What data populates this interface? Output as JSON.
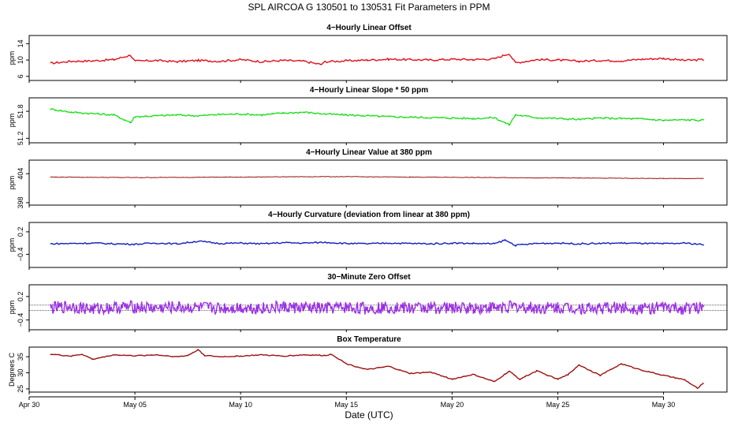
{
  "title": "SPL    AIRCOA G    130501 to 130531    Fit Parameters in PPM",
  "xlabel": "Date (UTC)",
  "chart_data": [
    {
      "type": "line",
      "title": "4−Hourly Linear Offset",
      "ylabel": "ppm",
      "yticks": [
        "6",
        "10",
        "14"
      ],
      "ylim": [
        5,
        16
      ],
      "color": "#e8101a",
      "series": [
        {
          "x": [
            1,
            31.9
          ],
          "baseline": 9.8,
          "values_note": ""
        }
      ],
      "points": [
        [
          1,
          9.2
        ],
        [
          2,
          9.7
        ],
        [
          3,
          9.8
        ],
        [
          4,
          10.1
        ],
        [
          4.8,
          11.2
        ],
        [
          5,
          9.7
        ],
        [
          6,
          9.9
        ],
        [
          7,
          9.6
        ],
        [
          8,
          9.9
        ],
        [
          9,
          9.7
        ],
        [
          10,
          10.1
        ],
        [
          11,
          9.6
        ],
        [
          12,
          9.9
        ],
        [
          13,
          9.7
        ],
        [
          13.8,
          8.9
        ],
        [
          14,
          9.6
        ],
        [
          15,
          9.8
        ],
        [
          16,
          10.0
        ],
        [
          17,
          10.2
        ],
        [
          18,
          10.1
        ],
        [
          19,
          10.0
        ],
        [
          20,
          10.2
        ],
        [
          21,
          10.1
        ],
        [
          22,
          10.3
        ],
        [
          22.7,
          11.6
        ],
        [
          23,
          9.3
        ],
        [
          24,
          10.1
        ],
        [
          25,
          10.0
        ],
        [
          26,
          9.7
        ],
        [
          27,
          9.9
        ],
        [
          28,
          9.8
        ],
        [
          29,
          10.2
        ],
        [
          30,
          10.4
        ],
        [
          31,
          9.9
        ],
        [
          31.9,
          10.1
        ]
      ]
    },
    {
      "type": "line",
      "title": "4−Hourly Linear Slope * 50 ppm",
      "ylabel": "ppm",
      "yticks": [
        "51.2",
        "51.8"
      ],
      "ylim": [
        51.1,
        52.1
      ],
      "color": "#1ee61e",
      "points": [
        [
          1,
          51.85
        ],
        [
          2,
          51.78
        ],
        [
          3,
          51.75
        ],
        [
          4,
          51.72
        ],
        [
          4.8,
          51.55
        ],
        [
          5,
          51.68
        ],
        [
          6,
          51.7
        ],
        [
          7,
          51.72
        ],
        [
          8,
          51.7
        ],
        [
          9,
          51.73
        ],
        [
          10,
          51.74
        ],
        [
          11,
          51.72
        ],
        [
          12,
          51.76
        ],
        [
          13,
          51.78
        ],
        [
          14,
          51.74
        ],
        [
          15,
          51.72
        ],
        [
          16,
          51.7
        ],
        [
          17,
          51.68
        ],
        [
          18,
          51.67
        ],
        [
          19,
          51.66
        ],
        [
          20,
          51.65
        ],
        [
          21,
          51.64
        ],
        [
          22,
          51.66
        ],
        [
          22.7,
          51.5
        ],
        [
          23,
          51.72
        ],
        [
          24,
          51.66
        ],
        [
          25,
          51.64
        ],
        [
          26,
          51.62
        ],
        [
          27,
          51.65
        ],
        [
          28,
          51.64
        ],
        [
          29,
          51.63
        ],
        [
          30,
          51.6
        ],
        [
          31,
          51.61
        ],
        [
          31.9,
          51.6
        ]
      ]
    },
    {
      "type": "line",
      "title": "4−Hourly Linear Value at 380 ppm",
      "ylabel": "ppm",
      "yticks": [
        "398",
        "404"
      ],
      "ylim": [
        397.5,
        406.8
      ],
      "color": "#a01010",
      "points": [
        [
          1,
          403.3
        ],
        [
          5,
          403.2
        ],
        [
          10,
          403.3
        ],
        [
          14,
          403.4
        ],
        [
          18,
          403.3
        ],
        [
          22,
          403.2
        ],
        [
          26,
          403.1
        ],
        [
          30,
          403.0
        ],
        [
          31.9,
          403.0
        ]
      ]
    },
    {
      "type": "line",
      "title": "4−Hourly Curvature (deviation from linear at 380 ppm)",
      "ylabel": "ppm",
      "yticks": [
        "−0.4",
        "0.2"
      ],
      "ylim": [
        -0.75,
        0.45
      ],
      "color": "#1020c8",
      "points": [
        [
          1,
          -0.12
        ],
        [
          2,
          -0.11
        ],
        [
          3,
          -0.1
        ],
        [
          4,
          -0.12
        ],
        [
          5,
          -0.13
        ],
        [
          6,
          -0.1
        ],
        [
          7,
          -0.12
        ],
        [
          8,
          -0.05
        ],
        [
          9,
          -0.11
        ],
        [
          10,
          -0.1
        ],
        [
          11,
          -0.12
        ],
        [
          12,
          -0.09
        ],
        [
          13,
          -0.1
        ],
        [
          14,
          -0.08
        ],
        [
          15,
          -0.11
        ],
        [
          16,
          -0.12
        ],
        [
          17,
          -0.1
        ],
        [
          18,
          -0.11
        ],
        [
          19,
          -0.12
        ],
        [
          20,
          -0.1
        ],
        [
          21,
          -0.11
        ],
        [
          22,
          -0.12
        ],
        [
          22.5,
          -0.02
        ],
        [
          23,
          -0.16
        ],
        [
          24,
          -0.11
        ],
        [
          25,
          -0.1
        ],
        [
          26,
          -0.12
        ],
        [
          27,
          -0.11
        ],
        [
          28,
          -0.1
        ],
        [
          29,
          -0.11
        ],
        [
          30,
          -0.12
        ],
        [
          31,
          -0.1
        ],
        [
          31.9,
          -0.14
        ]
      ]
    },
    {
      "type": "line",
      "title": "30−Minute Zero Offset",
      "ylabel": "ppm",
      "yticks": [
        "−0.4",
        "0.2"
      ],
      "ylim": [
        -0.65,
        0.5
      ],
      "color": "#9b30e6",
      "points": [
        [
          1,
          -0.1
        ],
        [
          2,
          -0.05
        ],
        [
          3,
          -0.12
        ],
        [
          4,
          -0.08
        ],
        [
          5,
          -0.06
        ],
        [
          6,
          -0.1
        ],
        [
          7,
          -0.07
        ],
        [
          8,
          -0.09
        ],
        [
          9,
          -0.1
        ],
        [
          10,
          -0.08
        ],
        [
          11,
          -0.1
        ],
        [
          12,
          -0.07
        ],
        [
          13,
          -0.09
        ],
        [
          14,
          -0.1
        ],
        [
          15,
          -0.08
        ],
        [
          16,
          -0.1
        ],
        [
          17,
          -0.07
        ],
        [
          18,
          -0.1
        ],
        [
          19,
          -0.08
        ],
        [
          20,
          -0.1
        ],
        [
          21,
          -0.09
        ],
        [
          22,
          -0.08
        ],
        [
          23,
          -0.06
        ],
        [
          24,
          -0.1
        ],
        [
          25,
          -0.08
        ],
        [
          26,
          -0.09
        ],
        [
          27,
          -0.1
        ],
        [
          28,
          -0.08
        ],
        [
          29,
          -0.1
        ],
        [
          30,
          -0.09
        ],
        [
          31,
          -0.11
        ],
        [
          31.9,
          -0.07
        ]
      ]
    },
    {
      "type": "line",
      "title": "Box Temperature",
      "ylabel": "Degrees C",
      "yticks": [
        "25",
        "30",
        "35"
      ],
      "ylim": [
        24,
        38
      ],
      "color": "#a01010",
      "points": [
        [
          1,
          35.8
        ],
        [
          2,
          35.2
        ],
        [
          2.5,
          35.8
        ],
        [
          3,
          34.2
        ],
        [
          4,
          35.6
        ],
        [
          5,
          35.3
        ],
        [
          6,
          35.6
        ],
        [
          7,
          35.0
        ],
        [
          7.5,
          35.4
        ],
        [
          8,
          37.2
        ],
        [
          8.3,
          35.4
        ],
        [
          9,
          35.0
        ],
        [
          10,
          35.2
        ],
        [
          11,
          35.6
        ],
        [
          12,
          35.2
        ],
        [
          13,
          35.6
        ],
        [
          14,
          35.4
        ],
        [
          14.3,
          35.8
        ],
        [
          15,
          32.8
        ],
        [
          16,
          31.0
        ],
        [
          17,
          32.0
        ],
        [
          18,
          29.8
        ],
        [
          19,
          30.2
        ],
        [
          20,
          28.0
        ],
        [
          21,
          29.5
        ],
        [
          22,
          27.2
        ],
        [
          22.7,
          30.5
        ],
        [
          23.2,
          28.0
        ],
        [
          24,
          30.6
        ],
        [
          25,
          28.0
        ],
        [
          25.5,
          29.5
        ],
        [
          26,
          32.5
        ],
        [
          27,
          29.2
        ],
        [
          28,
          32.8
        ],
        [
          29,
          30.8
        ],
        [
          30,
          29.2
        ],
        [
          31,
          27.8
        ],
        [
          31.6,
          25.2
        ],
        [
          31.9,
          26.8
        ]
      ]
    }
  ],
  "xticks": [
    "Apr 30",
    "May 05",
    "May 10",
    "May 15",
    "May 20",
    "May 25",
    "May 30"
  ],
  "xlim": [
    0,
    33
  ]
}
